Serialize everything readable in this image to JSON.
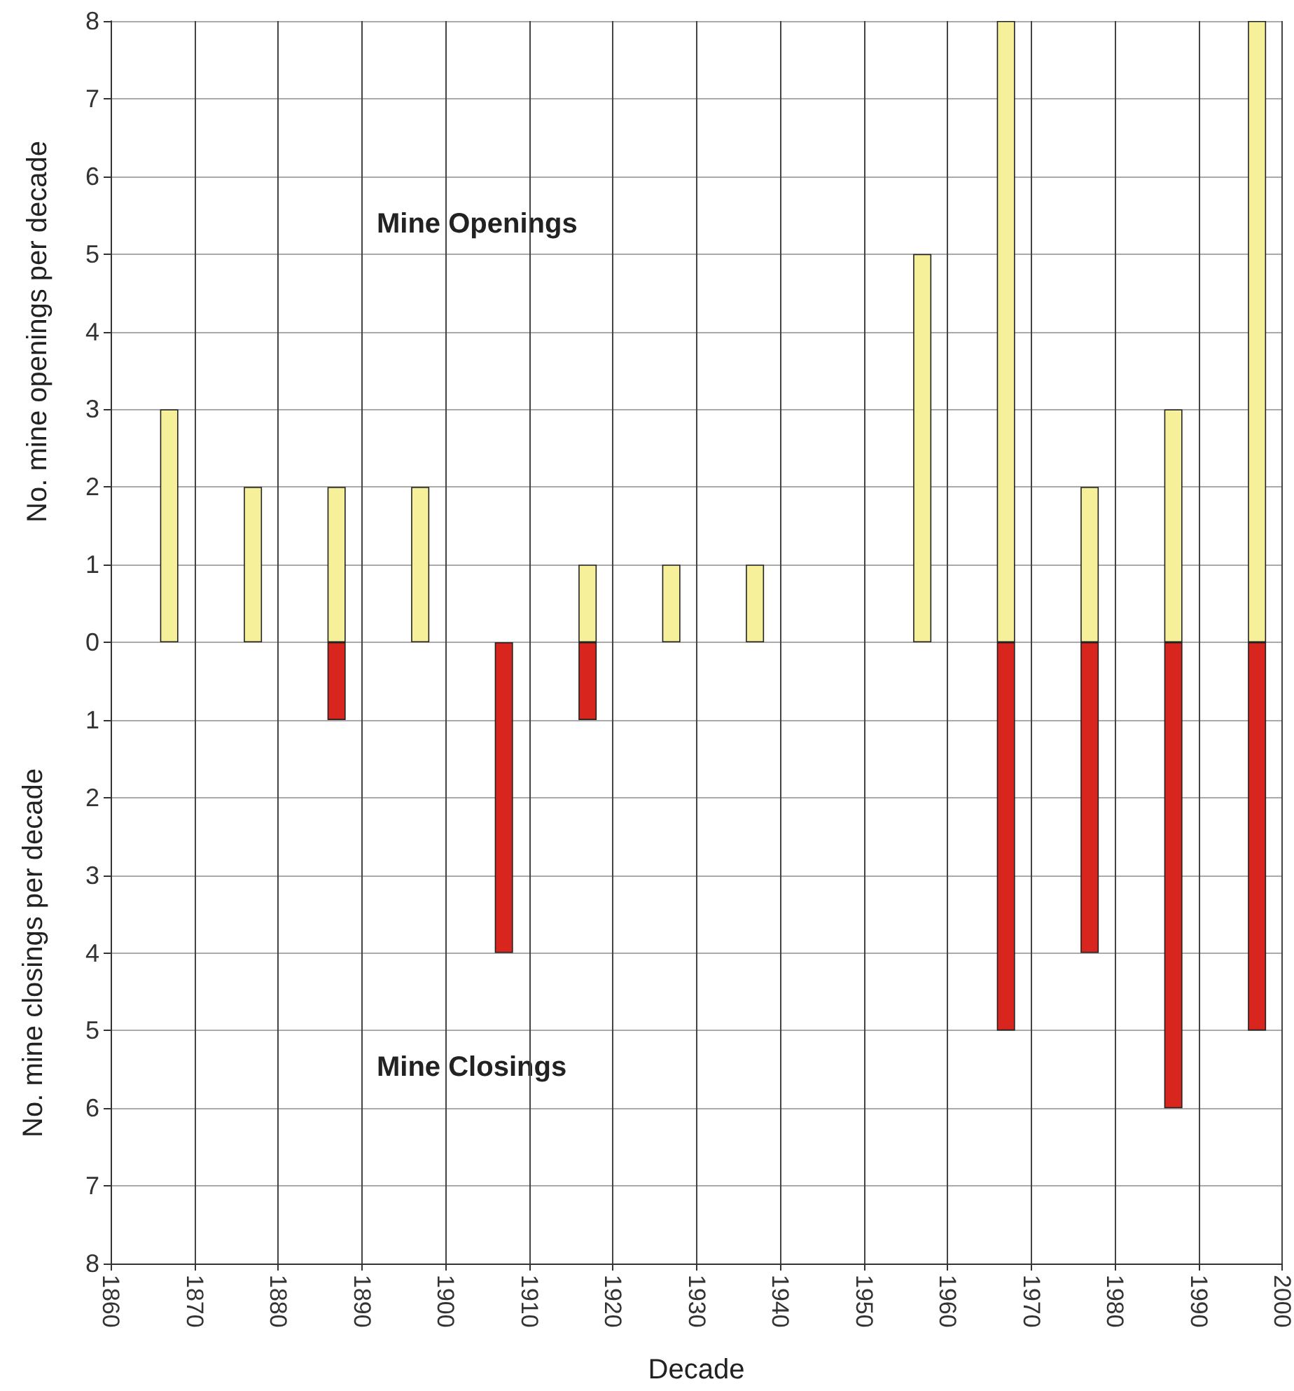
{
  "chart_data": {
    "type": "bar",
    "xlabel": "Decade",
    "ylabel": "No. mine openings per decade",
    "annotations": [
      "Mine Openings",
      "Mine Closings",
      "No. mine closings per decade"
    ],
    "x": [
      1867,
      1877,
      1887,
      1897,
      1907,
      1917,
      1927,
      1937,
      1947,
      1957,
      1967,
      1977,
      1987,
      1997
    ],
    "series": [
      {
        "color": "#f6f09a",
        "values": [
          3,
          2,
          2,
          2,
          0,
          1,
          1,
          1,
          0,
          5,
          8,
          2,
          3,
          8
        ]
      },
      {
        "color": "#d8251d",
        "values": [
          0,
          0,
          -1,
          0,
          -4,
          -1,
          0,
          0,
          0,
          0,
          -5,
          -4,
          -6,
          -5
        ]
      }
    ],
    "xlim": [
      1860,
      2000
    ],
    "xticks": [
      1860,
      1870,
      1880,
      1890,
      1900,
      1910,
      1920,
      1930,
      1940,
      1950,
      1960,
      1970,
      1980,
      1990,
      2000
    ],
    "ylim": [
      -8,
      8
    ],
    "yticks": [
      {
        "value": -8,
        "label": "8"
      },
      {
        "value": -7,
        "label": "7"
      },
      {
        "value": -6,
        "label": "6"
      },
      {
        "value": -5,
        "label": "5"
      },
      {
        "value": -4,
        "label": "4"
      },
      {
        "value": -3,
        "label": "3"
      },
      {
        "value": -2,
        "label": "2"
      },
      {
        "value": -1,
        "label": "1"
      },
      0,
      1,
      2,
      3,
      4,
      5,
      6,
      7,
      8
    ],
    "grid": true
  }
}
